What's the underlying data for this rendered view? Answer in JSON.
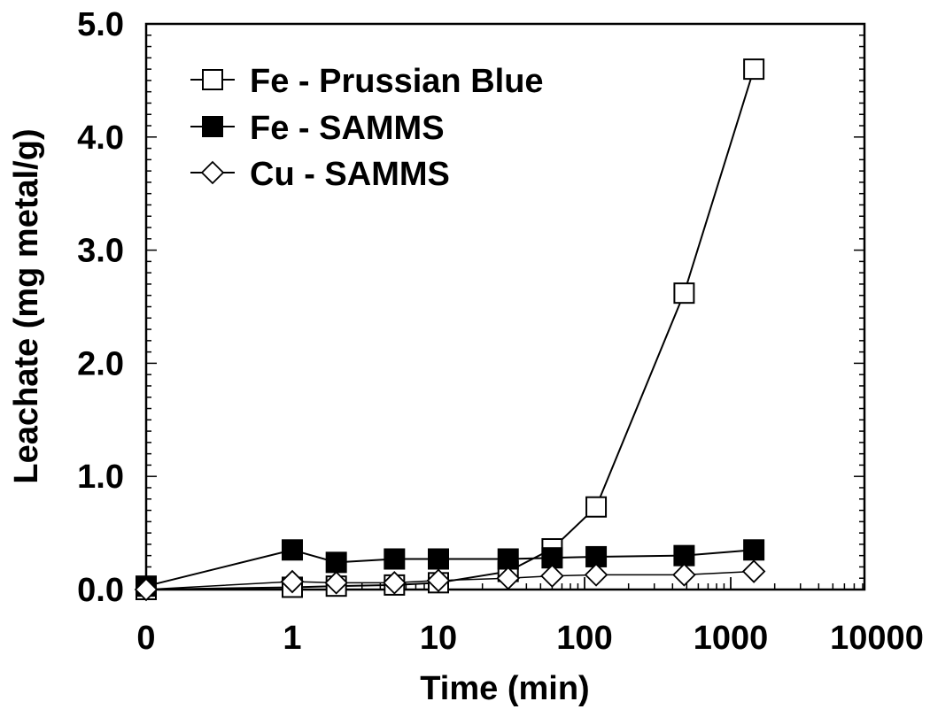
{
  "chart_data": {
    "type": "scatter",
    "title": "",
    "xlabel": "Time (min)",
    "ylabel": "Leachate (mg metal/g)",
    "x_scale": "log",
    "x_ticks": [
      "0",
      "1",
      "10",
      "100",
      "1000",
      "10000"
    ],
    "y_ticks": [
      "0.0",
      "1.0",
      "2.0",
      "3.0",
      "4.0",
      "5.0"
    ],
    "ylim": [
      0,
      5
    ],
    "grid": false,
    "legend_position": "top-left",
    "series": [
      {
        "name": "Fe - Prussian Blue",
        "marker": "open-square",
        "color": "#000000",
        "x": [
          "0",
          1,
          2,
          5,
          10,
          30,
          60,
          120,
          480,
          1440
        ],
        "y": [
          0.0,
          0.02,
          0.03,
          0.04,
          0.06,
          0.16,
          0.36,
          0.73,
          2.62,
          4.6
        ]
      },
      {
        "name": "Fe - SAMMS",
        "marker": "filled-square",
        "color": "#000000",
        "x": [
          "0",
          1,
          2,
          5,
          10,
          30,
          60,
          120,
          480,
          1440
        ],
        "y": [
          0.03,
          0.35,
          0.24,
          0.27,
          0.27,
          0.27,
          0.28,
          0.29,
          0.3,
          0.35
        ]
      },
      {
        "name": "Cu - SAMMS",
        "marker": "open-diamond",
        "color": "#000000",
        "x": [
          "0",
          1,
          2,
          5,
          10,
          30,
          60,
          120,
          480,
          1440
        ],
        "y": [
          0.0,
          0.07,
          0.06,
          0.06,
          0.08,
          0.1,
          0.12,
          0.13,
          0.13,
          0.16
        ]
      }
    ]
  }
}
